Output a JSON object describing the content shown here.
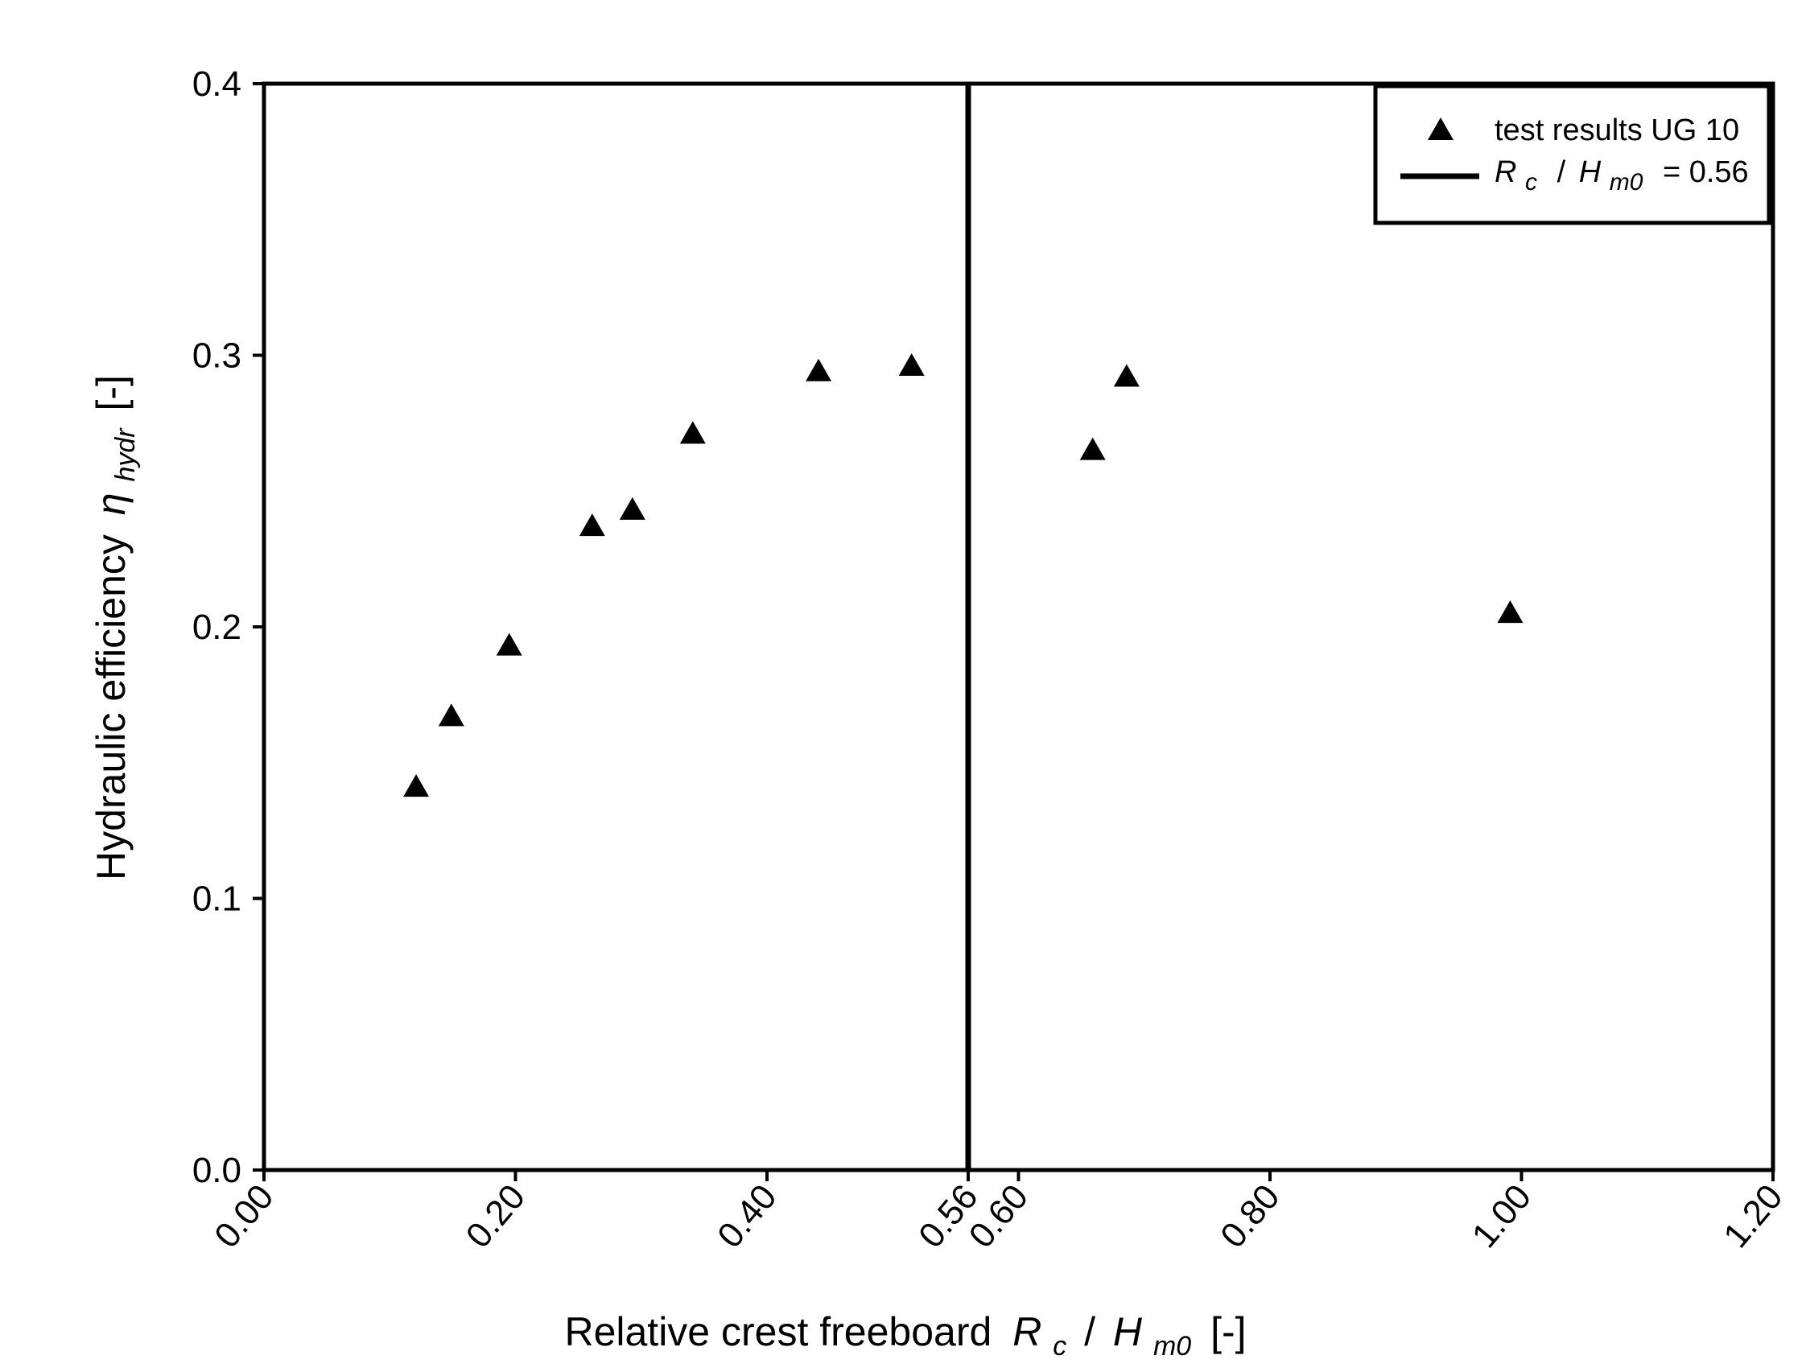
{
  "chart_data": {
    "type": "scatter",
    "xlabel": {
      "text": "Relative crest freeboard",
      "var": "R",
      "var_sub": "c",
      "sep": "/",
      "var2": "H",
      "var2_sub": "m0",
      "unit": "[-]"
    },
    "ylabel": {
      "text": "Hydraulic efficiency",
      "var": "η",
      "var_sub": "hydr",
      "unit": "[-]"
    },
    "xlim": [
      0,
      1.2
    ],
    "ylim": [
      0,
      0.4
    ],
    "x_ticks": [
      0.0,
      0.2,
      0.4,
      0.56,
      0.6,
      0.8,
      1.0,
      1.2
    ],
    "x_tick_labels": [
      "0.00",
      "0.20",
      "0.40",
      "0.56",
      "0.60",
      "0.80",
      "1.00",
      "1.20"
    ],
    "y_ticks": [
      0.0,
      0.1,
      0.2,
      0.3,
      0.4
    ],
    "y_tick_labels": [
      "0.0",
      "0.1",
      "0.2",
      "0.3",
      "0.4"
    ],
    "grid": false,
    "legend_position": "top-right",
    "series": [
      {
        "name": "test results UG 10",
        "marker": "triangle",
        "color": "#000000",
        "x": [
          0.121,
          0.149,
          0.195,
          0.261,
          0.293,
          0.341,
          0.441,
          0.515,
          0.659,
          0.686,
          0.991
        ],
        "y": [
          0.141,
          0.167,
          0.193,
          0.237,
          0.243,
          0.271,
          0.294,
          0.296,
          0.265,
          0.292,
          0.205
        ]
      }
    ],
    "reference_line": {
      "orientation": "vertical",
      "x": 0.56,
      "color": "#000000",
      "legend": {
        "var": "R",
        "var_sub": "c",
        "sep": "/",
        "var2": "H",
        "var2_sub": "m0",
        "eq": "= 0.56"
      }
    }
  }
}
